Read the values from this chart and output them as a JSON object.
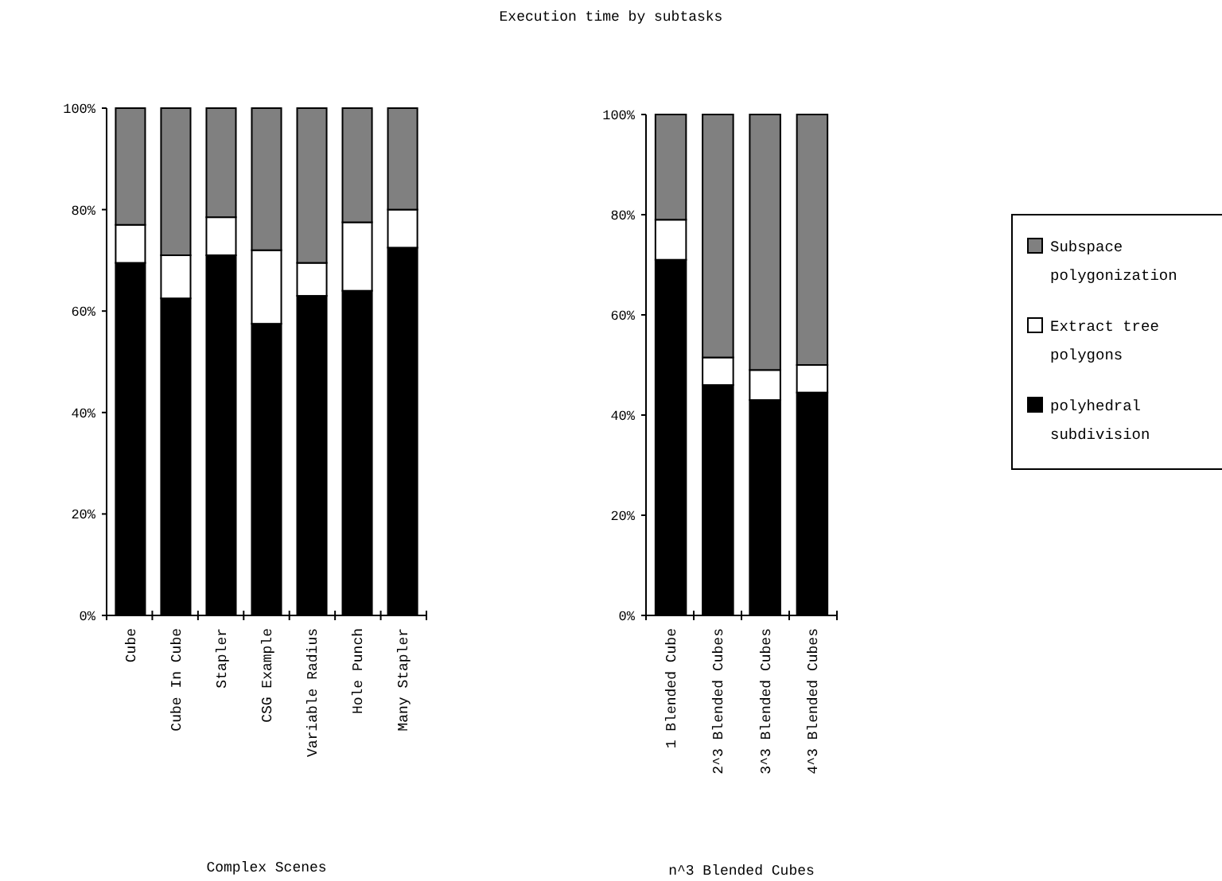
{
  "chart_data": [
    {
      "type": "bar",
      "xlabel": "Complex Scenes",
      "stacked": true,
      "categories": [
        "Cube",
        "Cube In Cube",
        "Stapler",
        "CSG Example",
        "Variable Radius",
        "Hole Punch",
        "Many Stapler"
      ],
      "series": [
        {
          "color": "#000000",
          "values": [
            69.5,
            62.5,
            71,
            57.5,
            63,
            64,
            72.5
          ]
        },
        {
          "color": "#ffffff",
          "values": [
            7.5,
            8.5,
            7.5,
            14.5,
            6.5,
            13.5,
            7.5
          ]
        },
        {
          "color": "#808080",
          "values": [
            23,
            29,
            21.5,
            28,
            30.5,
            22.5,
            20
          ]
        }
      ],
      "ylim": [
        0,
        100
      ],
      "yticks": [
        {
          "value": 0,
          "label": "0%"
        },
        {
          "value": 20,
          "label": "20%"
        },
        {
          "value": 40,
          "label": "40%"
        },
        {
          "value": 60,
          "label": "60%"
        },
        {
          "value": 80,
          "label": "80%"
        },
        {
          "value": 100,
          "label": "100%"
        }
      ],
      "legend": false
    },
    {
      "type": "bar",
      "title": "Execution time by subtasks",
      "xlabel": "n^3 Blended Cubes",
      "stacked": true,
      "categories": [
        "1 Blended Cube",
        "2^3 Blended Cubes",
        "3^3 Blended Cubes",
        "4^3 Blended Cubes"
      ],
      "series": [
        {
          "name": "polyhedral subdivision",
          "color": "#000000",
          "values": [
            71,
            46,
            43,
            44.5
          ]
        },
        {
          "name": "Extract tree polygons",
          "color": "#ffffff",
          "values": [
            8,
            5.5,
            6,
            5.5
          ]
        },
        {
          "name": "Subspace polygonization",
          "color": "#808080",
          "values": [
            21,
            48.5,
            51,
            50
          ]
        }
      ],
      "ylim": [
        0,
        100
      ],
      "yticks": [
        {
          "value": 0,
          "label": "0%"
        },
        {
          "value": 20,
          "label": "20%"
        },
        {
          "value": 40,
          "label": "40%"
        },
        {
          "value": 60,
          "label": "60%"
        },
        {
          "value": 80,
          "label": "80%"
        },
        {
          "value": 100,
          "label": "100%"
        }
      ],
      "legend": "right"
    }
  ]
}
